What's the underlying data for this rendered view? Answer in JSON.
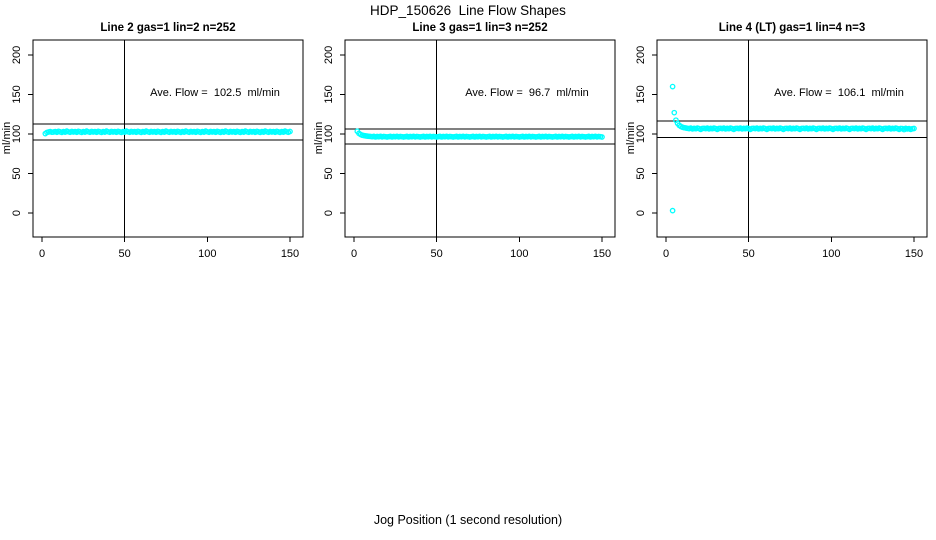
{
  "figure": {
    "title": "HDP_150626  Line Flow Shapes",
    "xlabel": "Jog Position (1 second resolution)"
  },
  "colors": {
    "point": "#00FFFF",
    "axis": "#000000",
    "background": "#FFFFFF"
  },
  "chart_data": [
    {
      "type": "scatter",
      "title": "Line 2 gas=1 lin=2 n=252",
      "ylabel": "ml/min",
      "annotation": "Ave. Flow =  102.5  ml/min",
      "ave_flow": 102.5,
      "n": 252,
      "x_ticks": [
        0,
        50,
        100,
        150
      ],
      "y_ticks": [
        0,
        50,
        100,
        150,
        200
      ],
      "xlim": [
        0,
        155
      ],
      "ylim": [
        -25,
        215
      ],
      "grid": false,
      "vline_x": 50,
      "hlines": [
        112.75,
        92.25
      ],
      "series": [
        {
          "name": "flow",
          "x_start": 2,
          "x_step": 1,
          "y": [
            100.5,
            102,
            102.5,
            103,
            102.3,
            102.5,
            103,
            102.2,
            103.4,
            102.7,
            102.1,
            103.1,
            102.4,
            103.6,
            102.8,
            102.2,
            103.2,
            102.5,
            103,
            102.2,
            103.4,
            102.7,
            102.1,
            103.1,
            102.4,
            103.6,
            102.8,
            102.2,
            103.2,
            102.5,
            103,
            102.2,
            103.4,
            102.7,
            102.1,
            103.1,
            102.4,
            103.6,
            102.8,
            102.2,
            103.2,
            102.5,
            103,
            102.2,
            103.4,
            102.7,
            102.1,
            103.1,
            102.4,
            103.6,
            102.8,
            102.2,
            103.2,
            102.5,
            103,
            102.2,
            103.4,
            102.7,
            102.1,
            103.1,
            102.4,
            103.6,
            102.8,
            102.2,
            103.2,
            102.5,
            103,
            102.2,
            103.4,
            102.7,
            102.1,
            103.1,
            102.4,
            103.6,
            102.8,
            102.2,
            103.2,
            102.5,
            103,
            102.2,
            103.4,
            102.7,
            102.1,
            103.1,
            102.4,
            103.6,
            102.8,
            102.2,
            103.2,
            102.5,
            103,
            102.2,
            103.4,
            102.7,
            102.1,
            103.1,
            102.4,
            103.6,
            102.8,
            102.2,
            103.2,
            102.5,
            103,
            102.2,
            103.4,
            102.7,
            102.1,
            103.1,
            102.4,
            103.6,
            102.8,
            102.2,
            103.2,
            102.5,
            103,
            102.2,
            103.4,
            102.7,
            102.1,
            103.1,
            102.4,
            103.6,
            102.8,
            102.2,
            103.2,
            102.5,
            103,
            102.2,
            103.4,
            102.7,
            102.1,
            103.1,
            102.4,
            103.6,
            102.8,
            102.2,
            103.2,
            102.5,
            103,
            102.2,
            103.4,
            102.7,
            102.1,
            103.1,
            102.4,
            103.6,
            102.8,
            102.2,
            103.2
          ]
        }
      ],
      "outliers": []
    },
    {
      "type": "scatter",
      "title": "Line 3 gas=1 lin=3 n=252",
      "ylabel": "ml/min",
      "annotation": "Ave. Flow =  96.7  ml/min",
      "ave_flow": 96.7,
      "n": 252,
      "x_ticks": [
        0,
        50,
        100,
        150
      ],
      "y_ticks": [
        0,
        50,
        100,
        150,
        200
      ],
      "xlim": [
        0,
        155
      ],
      "ylim": [
        -25,
        215
      ],
      "grid": false,
      "vline_x": 50,
      "hlines": [
        106.37,
        87.03
      ],
      "series": [
        {
          "name": "flow",
          "x_start": 2,
          "x_step": 1,
          "y": [
            103.5,
            100.8,
            99.4,
            98.5,
            98,
            97.6,
            97.3,
            97.1,
            96.9,
            96.6,
            97,
            96.3,
            96.8,
            96.5,
            97.1,
            96.4,
            96.9,
            96.6,
            96.2,
            96.6,
            97,
            96.3,
            96.8,
            96.5,
            97.1,
            96.4,
            96.9,
            96.6,
            96.2,
            96.6,
            97,
            96.3,
            96.8,
            96.5,
            97.1,
            96.4,
            96.9,
            96.6,
            96.2,
            96.6,
            97,
            96.3,
            96.8,
            96.5,
            97.1,
            96.4,
            96.9,
            96.6,
            96.2,
            96.6,
            97,
            96.3,
            96.8,
            96.5,
            97.1,
            96.4,
            96.9,
            96.6,
            96.2,
            96.6,
            97,
            96.3,
            96.8,
            96.5,
            97.1,
            96.4,
            96.9,
            96.6,
            96.2,
            96.6,
            97,
            96.3,
            96.8,
            96.5,
            97.1,
            96.4,
            96.9,
            96.6,
            96.2,
            96.6,
            97,
            96.3,
            96.8,
            96.5,
            97.1,
            96.4,
            96.9,
            96.6,
            96.2,
            96.6,
            97,
            96.3,
            96.8,
            96.5,
            97.1,
            96.4,
            96.9,
            96.6,
            96.2,
            96.6,
            97,
            96.3,
            96.8,
            96.5,
            97.1,
            96.4,
            96.9,
            96.6,
            96.2,
            96.6,
            97,
            96.3,
            96.8,
            96.5,
            97.1,
            96.4,
            96.9,
            96.6,
            96.2,
            96.6,
            97,
            96.3,
            96.8,
            96.5,
            97.1,
            96.4,
            96.9,
            96.6,
            96.2,
            96.6,
            97,
            96.3,
            96.8,
            96.5,
            97.1,
            96.4,
            96.9,
            96.6,
            96.2,
            96.6,
            97,
            96.3,
            96.8,
            96.5,
            97.1,
            96.4,
            96.9,
            96.6,
            96.2
          ]
        }
      ],
      "outliers": []
    },
    {
      "type": "scatter",
      "title": "Line 4 (LT) gas=1 lin=4 n=3",
      "ylabel": "ml/min",
      "annotation": "Ave. Flow =  106.1  ml/min",
      "ave_flow": 106.1,
      "n": 3,
      "x_ticks": [
        0,
        50,
        100,
        150
      ],
      "y_ticks": [
        0,
        50,
        100,
        150,
        200
      ],
      "xlim": [
        0,
        155
      ],
      "ylim": [
        -25,
        215
      ],
      "grid": false,
      "vline_x": 50,
      "hlines": [
        116.71,
        95.49
      ],
      "series": [
        {
          "name": "flow",
          "x_start": 6,
          "x_step": 1,
          "y": [
            117.5,
            113.5,
            111,
            109.5,
            108.5,
            108,
            107.6,
            107.2,
            106.8,
            107.4,
            106.5,
            107.1,
            106.7,
            107.5,
            106.9,
            105.8,
            107,
            107.2,
            106.8,
            107.4,
            106.5,
            107.1,
            106.7,
            107.5,
            106.9,
            105.8,
            107,
            107.2,
            106.8,
            107.4,
            106.5,
            107.1,
            106.7,
            107.5,
            106.9,
            105.8,
            107,
            107.2,
            106.8,
            107.4,
            106.5,
            107.1,
            106.7,
            107.5,
            106.9,
            105.8,
            107,
            107.2,
            106.8,
            107.4,
            106.5,
            107.1,
            106.7,
            107.5,
            106.9,
            105.8,
            107,
            107.2,
            106.8,
            107.4,
            106.5,
            107.1,
            106.7,
            107.5,
            106.9,
            105.8,
            107,
            107.2,
            106.8,
            107.4,
            106.5,
            107.1,
            106.7,
            107.5,
            106.9,
            105.8,
            107,
            107.2,
            106.8,
            107.4,
            106.5,
            107.1,
            106.7,
            107.5,
            106.9,
            105.8,
            107,
            107.2,
            106.8,
            107.4,
            106.5,
            107.1,
            106.7,
            107.5,
            106.9,
            105.8,
            107,
            107.2,
            106.8,
            107.4,
            106.5,
            107.1,
            106.7,
            107.5,
            106.9,
            105.8,
            107,
            107.2,
            106.8,
            107.4,
            106.5,
            107.1,
            106.7,
            107.5,
            106.9,
            105.8,
            107,
            107.2,
            106.8,
            107.4,
            106.5,
            107.1,
            106.7,
            107.5,
            106.9,
            105.8,
            107,
            107.2,
            106.8,
            107.4,
            106.5,
            107.1,
            106.7,
            107.5,
            106.9,
            105.8,
            107,
            106.8,
            105.6,
            107.1,
            106.4,
            106.9,
            105.9,
            106.6,
            107
          ]
        }
      ],
      "outliers": [
        [
          4,
          160
        ],
        [
          5,
          127
        ],
        [
          4,
          3
        ]
      ]
    }
  ]
}
